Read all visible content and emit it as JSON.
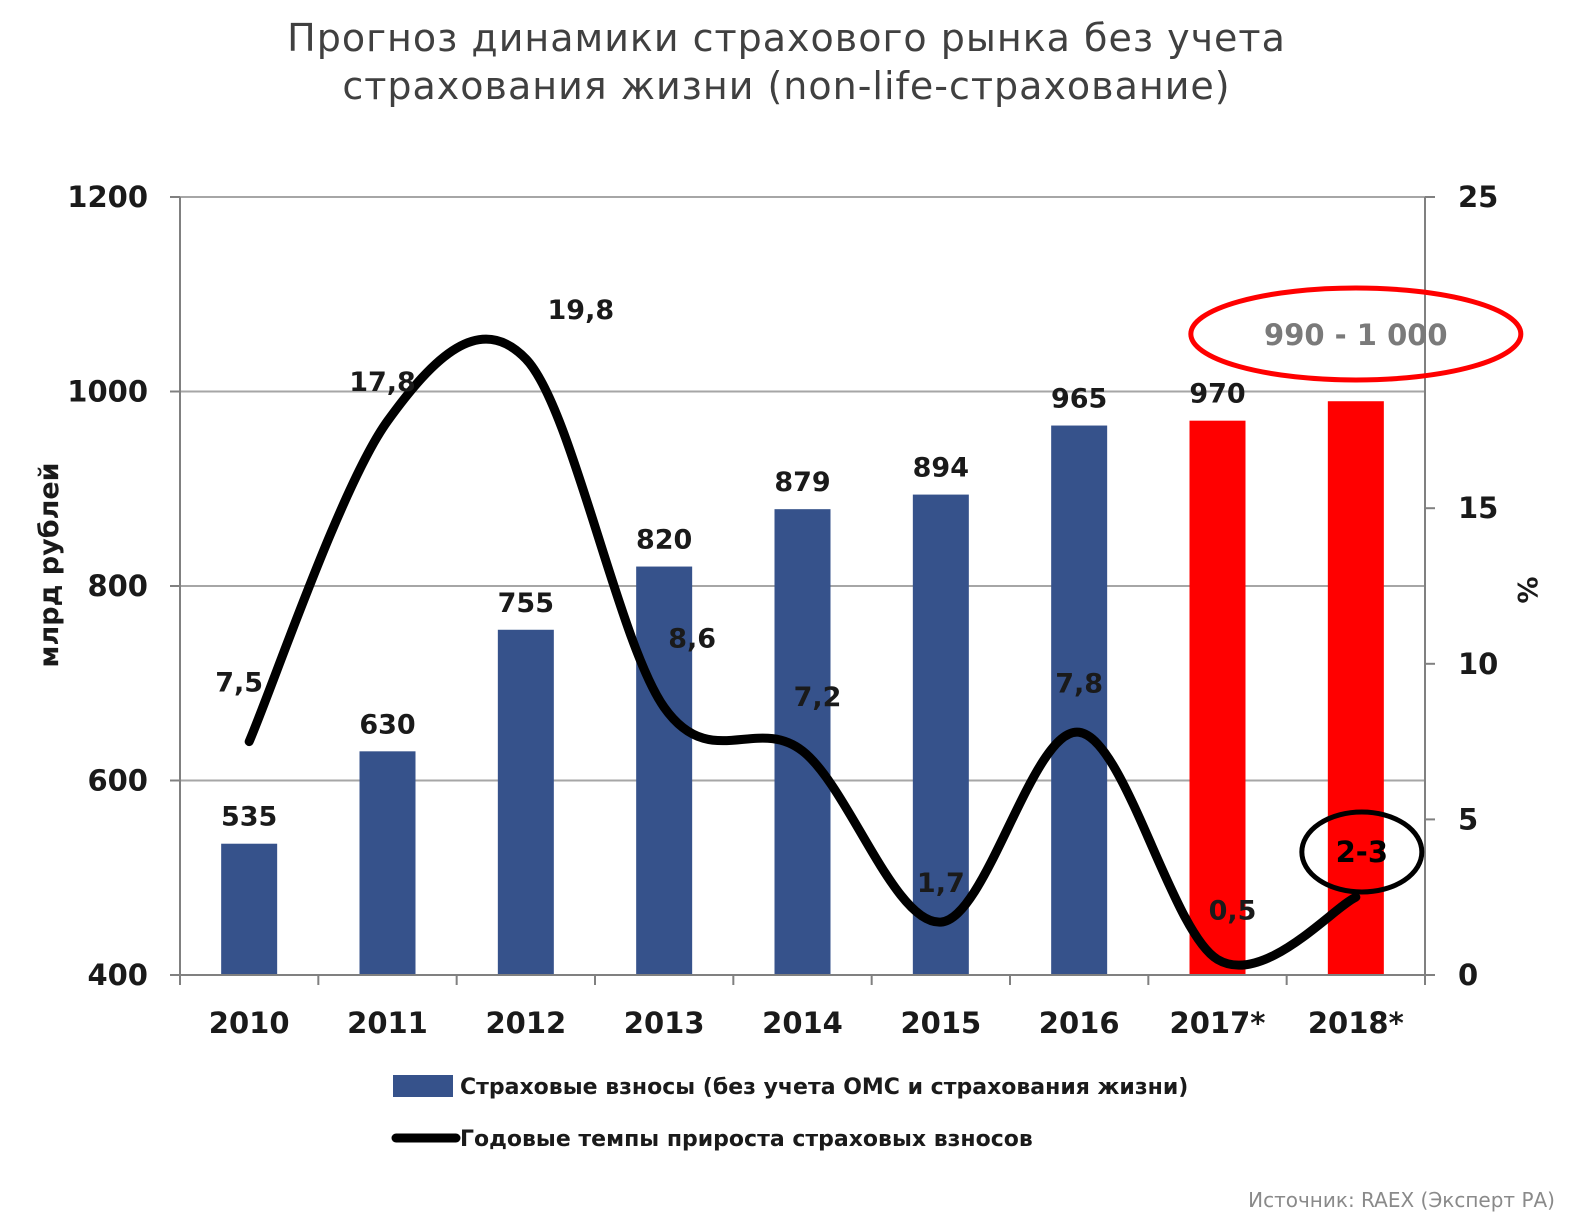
{
  "title_lines": [
    "Прогноз динамики страхового рынка без учета",
    "страхования жизни (non-life-страхование)"
  ],
  "source": "Источник: RAEX (Эксперт РА)",
  "chart_data": {
    "type": "bar",
    "title": "Прогноз динамики страхового рынка без учета страхования жизни (non-life-страхование)",
    "categories": [
      "2010",
      "2011",
      "2012",
      "2013",
      "2014",
      "2015",
      "2016",
      "2017*",
      "2018*"
    ],
    "ylabel_left": "млрд рублей",
    "ylabel_right": "%",
    "ylim_left": [
      400,
      1200
    ],
    "yticks_left": [
      "400",
      "600",
      "800",
      "1000",
      "1200"
    ],
    "ylim_right": [
      0,
      25
    ],
    "yticks_right": [
      "0",
      "5",
      "10",
      "15",
      "25"
    ],
    "yticks_right_values": [
      0,
      5,
      10,
      15,
      25
    ],
    "grid": true,
    "legend_position": "bottom",
    "series": [
      {
        "name": "Страховые взносы (без учета ОМС и страхования жизни)",
        "type": "bar",
        "axis": "left",
        "values": [
          535,
          630,
          755,
          820,
          879,
          894,
          965,
          970,
          990
        ],
        "labels": [
          "535",
          "630",
          "755",
          "820",
          "879",
          "894",
          "965",
          "970",
          ""
        ],
        "colors": [
          "#36528b",
          "#36528b",
          "#36528b",
          "#36528b",
          "#36528b",
          "#36528b",
          "#36528b",
          "#ff0000",
          "#ff0000"
        ]
      },
      {
        "name": "Годовые темпы прироста страховых взносов",
        "type": "line",
        "axis": "right",
        "values": [
          7.5,
          17.8,
          19.8,
          8.6,
          7.2,
          1.7,
          7.8,
          0.5,
          2.5
        ],
        "labels": [
          "7,5",
          "17,8",
          "19,8",
          "8,6",
          "7,2",
          "1,7",
          "7,8",
          "0,5",
          "2-3"
        ],
        "color": "#000000"
      }
    ],
    "annotations": [
      {
        "text": "990 - 1 000",
        "category": "2018*",
        "color": "#ff0000"
      },
      {
        "text": "2-3",
        "category": "2018*",
        "color": "#000000"
      }
    ]
  }
}
